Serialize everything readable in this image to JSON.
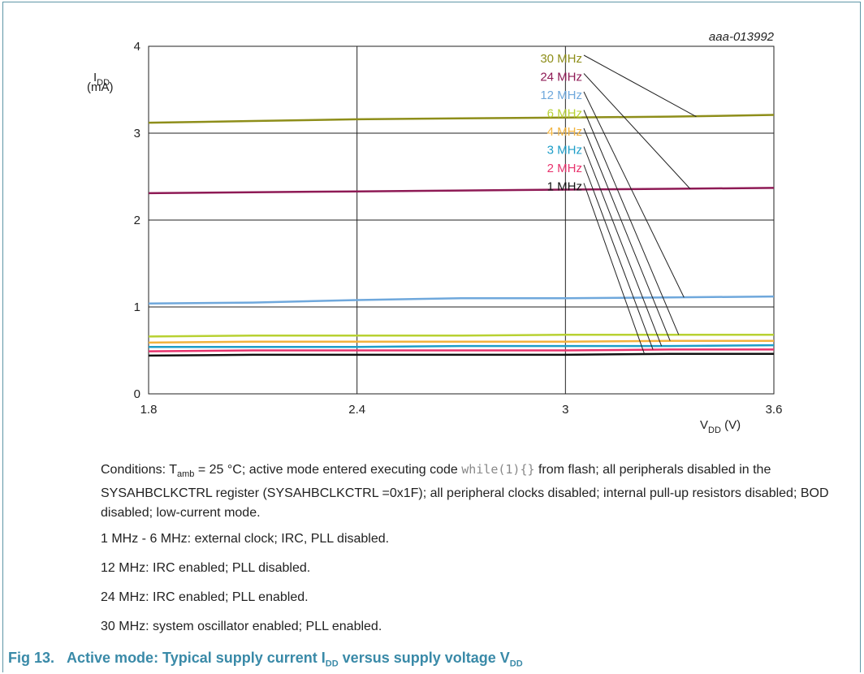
{
  "chart_data": {
    "type": "line",
    "ref_code": "aaa-013992",
    "ylabel_main": "I",
    "ylabel_sub": "DD",
    "ylabel_unit": "(mA)",
    "xlabel_main": "V",
    "xlabel_sub": "DD",
    "xlabel_unit": "(V)",
    "xlim": [
      1.8,
      3.6
    ],
    "ylim": [
      0,
      4
    ],
    "xticks": [
      "1.8",
      "2.4",
      "3",
      "3.6"
    ],
    "xtick_values": [
      1.8,
      2.4,
      3.0,
      3.6
    ],
    "yticks": [
      "0",
      "1",
      "2",
      "3",
      "4"
    ],
    "ytick_values": [
      0,
      1,
      2,
      3,
      4
    ],
    "grid": true,
    "series": [
      {
        "name": "30 MHz",
        "color": "#8e8e1a",
        "x": [
          1.8,
          2.1,
          2.4,
          2.7,
          3.0,
          3.3,
          3.6
        ],
        "y": [
          3.12,
          3.14,
          3.16,
          3.17,
          3.18,
          3.19,
          3.21
        ]
      },
      {
        "name": "24 MHz",
        "color": "#8e1a55",
        "x": [
          1.8,
          2.1,
          2.4,
          2.7,
          3.0,
          3.3,
          3.6
        ],
        "y": [
          2.31,
          2.32,
          2.33,
          2.34,
          2.35,
          2.36,
          2.37
        ]
      },
      {
        "name": "12 MHz",
        "color": "#6fa8dc",
        "x": [
          1.8,
          2.1,
          2.4,
          2.7,
          3.0,
          3.3,
          3.6
        ],
        "y": [
          1.04,
          1.05,
          1.08,
          1.1,
          1.1,
          1.11,
          1.12
        ]
      },
      {
        "name": "6 MHz",
        "color": "#b8d132",
        "x": [
          1.8,
          2.1,
          2.4,
          2.7,
          3.0,
          3.3,
          3.6
        ],
        "y": [
          0.66,
          0.67,
          0.67,
          0.67,
          0.68,
          0.68,
          0.68
        ]
      },
      {
        "name": "4 MHz",
        "color": "#f2b33d",
        "x": [
          1.8,
          2.1,
          2.4,
          2.7,
          3.0,
          3.3,
          3.6
        ],
        "y": [
          0.59,
          0.6,
          0.6,
          0.6,
          0.6,
          0.61,
          0.61
        ]
      },
      {
        "name": "3 MHz",
        "color": "#1e9ec8",
        "x": [
          1.8,
          2.1,
          2.4,
          2.7,
          3.0,
          3.3,
          3.6
        ],
        "y": [
          0.54,
          0.54,
          0.54,
          0.55,
          0.55,
          0.55,
          0.56
        ]
      },
      {
        "name": "2 MHz",
        "color": "#e8336d",
        "x": [
          1.8,
          2.1,
          2.4,
          2.7,
          3.0,
          3.3,
          3.6
        ],
        "y": [
          0.49,
          0.5,
          0.5,
          0.5,
          0.5,
          0.51,
          0.51
        ]
      },
      {
        "name": "1 MHz",
        "color": "#111111",
        "x": [
          1.8,
          2.1,
          2.4,
          2.7,
          3.0,
          3.3,
          3.6
        ],
        "y": [
          0.44,
          0.45,
          0.45,
          0.45,
          0.45,
          0.46,
          0.46
        ]
      }
    ]
  },
  "notes": {
    "conditions_prefix": "Conditions: T",
    "conditions_sub": "amb",
    "conditions_mid": " = 25 °C; active mode entered executing code ",
    "conditions_code": "while(1){}",
    "conditions_suffix": " from flash; all peripherals disabled in the SYSAHBCLKCTRL register (SYSAHBCLKCTRL =0x1F); all peripheral clocks disabled; internal pull-up resistors disabled; BOD disabled; low-current mode.",
    "line_1_6": "1 MHz - 6 MHz: external clock; IRC, PLL disabled.",
    "line_12": "12 MHz: IRC enabled; PLL disabled.",
    "line_24": "24 MHz: IRC enabled; PLL enabled.",
    "line_30": "30 MHz: system oscillator enabled; PLL enabled."
  },
  "figure": {
    "label": "Fig 13.",
    "caption_pre": "Active mode: Typical supply current I",
    "caption_sub1": "DD",
    "caption_mid": " versus supply voltage V",
    "caption_sub2": "DD"
  }
}
